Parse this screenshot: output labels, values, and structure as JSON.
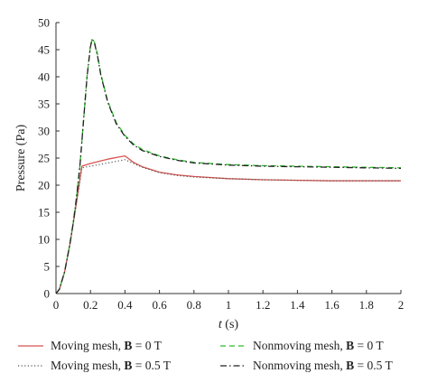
{
  "chart_data": {
    "type": "line",
    "title": "",
    "xlabel": "t",
    "xlabel_unit": " (s)",
    "ylabel": "Pressure (Pa)",
    "xlim": [
      0,
      2
    ],
    "ylim": [
      0,
      50
    ],
    "x_ticks": [
      "0",
      "0.2",
      "0.4",
      "0.6",
      "0.8",
      "1",
      "1.2",
      "1.4",
      "1.6",
      "1.8",
      "2"
    ],
    "y_ticks": [
      "0",
      "5",
      "10",
      "15",
      "20",
      "25",
      "30",
      "35",
      "40",
      "45",
      "50"
    ],
    "grid": false,
    "legend_position": "bottom",
    "series": [
      {
        "name_prefix": "Moving mesh, ",
        "name_bold": "B",
        "name_suffix": " = 0 T",
        "color": "#d9534f",
        "style": "solid",
        "x": [
          0,
          0.02,
          0.05,
          0.08,
          0.1,
          0.12,
          0.15,
          0.2,
          0.25,
          0.3,
          0.35,
          0.4,
          0.45,
          0.5,
          0.6,
          0.7,
          0.8,
          1.0,
          1.2,
          1.4,
          1.6,
          1.8,
          2.0
        ],
        "y": [
          0,
          0.8,
          4,
          9,
          13,
          17,
          23.5,
          24,
          24.4,
          24.8,
          25.1,
          25.4,
          24.2,
          23.4,
          22.4,
          21.9,
          21.6,
          21.2,
          21.0,
          20.9,
          20.8,
          20.8,
          20.8
        ]
      },
      {
        "name_prefix": "Moving mesh, ",
        "name_bold": "B",
        "name_suffix": " = 0.5 T",
        "color": "#555555",
        "style": "dotted",
        "x": [
          0,
          0.02,
          0.05,
          0.08,
          0.1,
          0.12,
          0.15,
          0.2,
          0.25,
          0.3,
          0.35,
          0.4,
          0.45,
          0.5,
          0.6,
          0.7,
          0.8,
          1.0,
          1.2,
          1.4,
          1.6,
          1.8,
          2.0
        ],
        "y": [
          0,
          0.8,
          4,
          9,
          13,
          17,
          23.2,
          23.5,
          23.8,
          24.1,
          24.4,
          24.7,
          24.0,
          23.3,
          22.3,
          21.8,
          21.5,
          21.2,
          21.0,
          20.9,
          20.8,
          20.8,
          20.8
        ]
      },
      {
        "name_prefix": "Nonmoving mesh, ",
        "name_bold": "B",
        "name_suffix": " = 0 T",
        "color": "#2dbb2d",
        "style": "dashed",
        "x": [
          0,
          0.02,
          0.05,
          0.08,
          0.1,
          0.12,
          0.14,
          0.16,
          0.18,
          0.2,
          0.21,
          0.22,
          0.24,
          0.26,
          0.3,
          0.35,
          0.4,
          0.45,
          0.5,
          0.6,
          0.7,
          0.8,
          1.0,
          1.2,
          1.4,
          1.6,
          1.8,
          2.0
        ],
        "y": [
          0,
          0.8,
          4,
          9,
          13,
          18,
          24,
          32,
          40,
          45.8,
          47,
          46.8,
          44.2,
          40.5,
          35.5,
          31.5,
          29.2,
          27.6,
          26.6,
          25.4,
          24.7,
          24.2,
          23.8,
          23.6,
          23.5,
          23.4,
          23.3,
          23.2
        ]
      },
      {
        "name_prefix": "Nonmoving mesh, ",
        "name_bold": "B",
        "name_suffix": " = 0.5 T",
        "color": "#222222",
        "style": "dashdot",
        "x": [
          0,
          0.02,
          0.05,
          0.08,
          0.1,
          0.12,
          0.14,
          0.16,
          0.18,
          0.2,
          0.21,
          0.22,
          0.24,
          0.26,
          0.3,
          0.35,
          0.4,
          0.45,
          0.5,
          0.6,
          0.7,
          0.8,
          1.0,
          1.2,
          1.4,
          1.6,
          1.8,
          2.0
        ],
        "y": [
          0,
          0.8,
          4,
          9,
          13,
          18,
          24,
          32,
          40,
          45.6,
          46.8,
          46.6,
          44.0,
          40.3,
          35.3,
          31.3,
          29.0,
          27.4,
          26.4,
          25.3,
          24.6,
          24.1,
          23.7,
          23.5,
          23.4,
          23.3,
          23.2,
          23.1
        ]
      }
    ]
  }
}
